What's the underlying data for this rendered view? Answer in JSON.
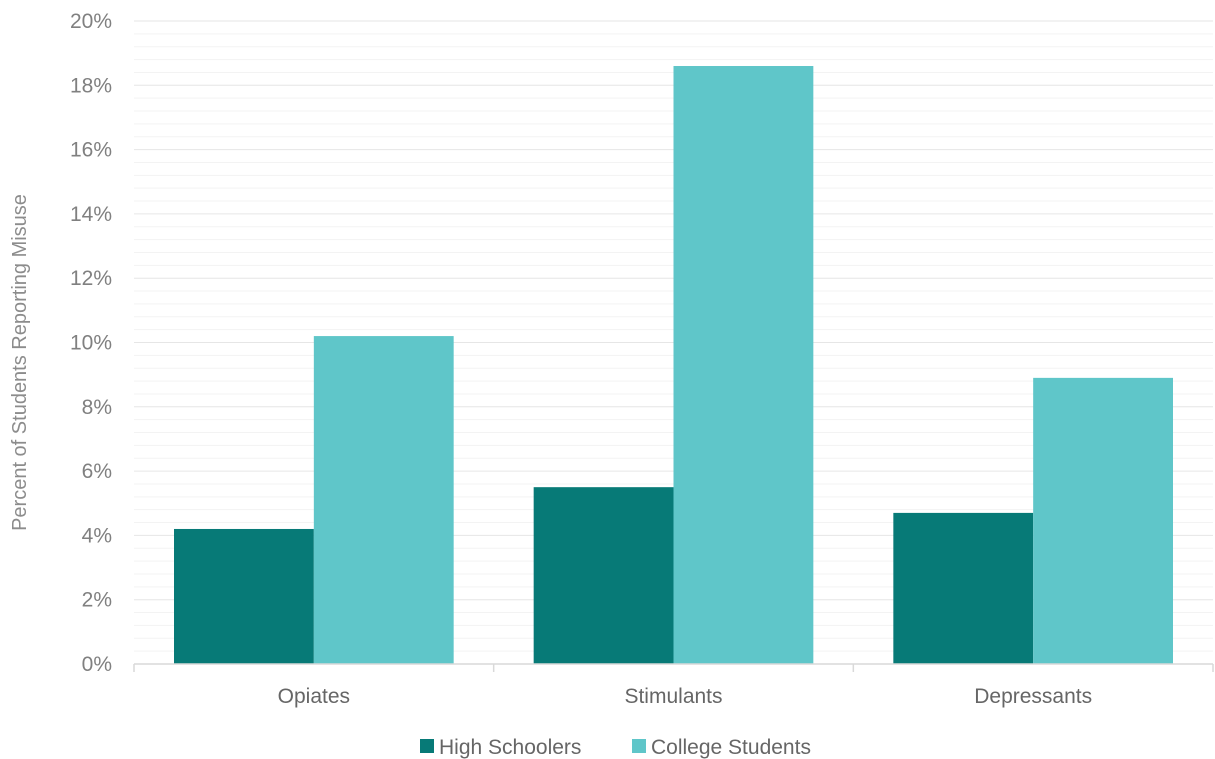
{
  "chart_data": {
    "type": "bar",
    "title": "",
    "xlabel": "",
    "ylabel": "Percent of Students Reporting Misuse",
    "categories": [
      "Opiates",
      "Stimulants",
      "Depressants"
    ],
    "series": [
      {
        "name": "High Schoolers",
        "values": [
          4.2,
          5.5,
          4.7
        ],
        "color": "#077a77"
      },
      {
        "name": "College Students",
        "values": [
          10.2,
          18.6,
          8.9
        ],
        "color": "#5fc6c9"
      }
    ],
    "ylim": [
      0,
      20
    ],
    "ytick_step": 2,
    "ytick_suffix": "%",
    "grid": true,
    "legend": "bottom"
  }
}
